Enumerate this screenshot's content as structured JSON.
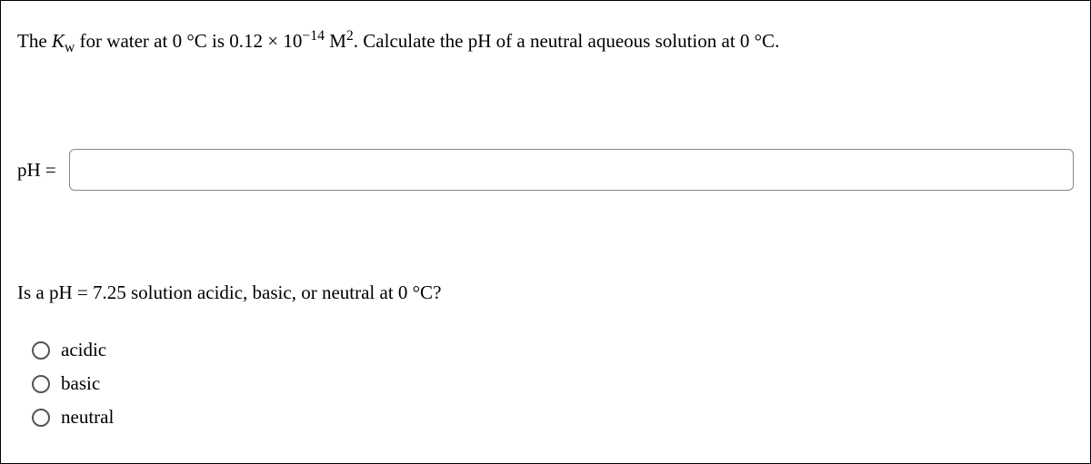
{
  "question1": {
    "pre": "The ",
    "k": "K",
    "ksub": "w",
    "mid1": " for water at 0 °C is 0.12 × 10",
    "exp": "−14",
    "mid2": " M",
    "sq": "2",
    "mid3": ". Calculate the pH of a neutral aqueous solution at 0 °C."
  },
  "ph_label": "pH  =",
  "ph_value": "",
  "question2": {
    "pre": "Is a pH ",
    "eq": "=",
    "val": " 7.25 solution acidic, basic, or neutral at 0 °C?"
  },
  "options": [
    {
      "label": "acidic"
    },
    {
      "label": "basic"
    },
    {
      "label": "neutral"
    }
  ]
}
